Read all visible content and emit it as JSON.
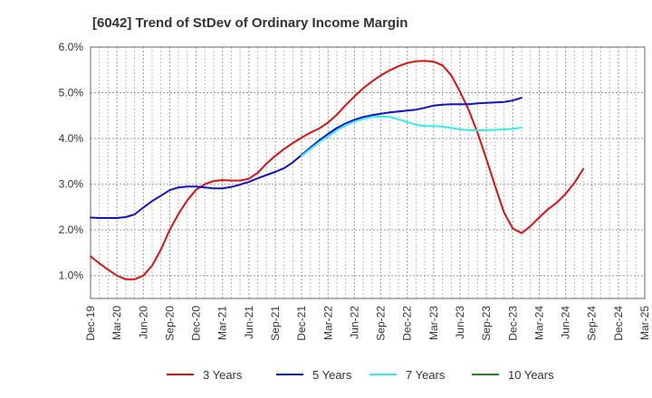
{
  "chart_data": {
    "type": "line",
    "title": "[6042]  Trend of StDev of Ordinary Income Margin",
    "xlabel": "",
    "ylabel": "",
    "ylim": [
      0.5,
      6.0
    ],
    "y_ticks": [
      "1.0%",
      "2.0%",
      "3.0%",
      "4.0%",
      "5.0%",
      "6.0%"
    ],
    "x_ticks": [
      "Dec-19",
      "Mar-20",
      "Jun-20",
      "Sep-20",
      "Dec-20",
      "Mar-21",
      "Jun-21",
      "Sep-21",
      "Dec-21",
      "Mar-22",
      "Jun-22",
      "Sep-22",
      "Dec-22",
      "Mar-23",
      "Jun-23",
      "Sep-23",
      "Dec-23",
      "Mar-24",
      "Jun-24",
      "Sep-24",
      "Dec-24",
      "Mar-25"
    ],
    "grid": true,
    "legend_position": "bottom",
    "series": [
      {
        "name": "3 Years",
        "color": "#dd1111",
        "points": [
          [
            "Dec-19",
            1.42
          ],
          [
            "Jan-20",
            1.27
          ],
          [
            "Feb-20",
            1.13
          ],
          [
            "Mar-20",
            1.0
          ],
          [
            "Apr-20",
            0.92
          ],
          [
            "May-20",
            0.92
          ],
          [
            "Jun-20",
            1.0
          ],
          [
            "Jul-20",
            1.22
          ],
          [
            "Aug-20",
            1.57
          ],
          [
            "Sep-20",
            2.0
          ],
          [
            "Oct-20",
            2.35
          ],
          [
            "Nov-20",
            2.65
          ],
          [
            "Dec-20",
            2.88
          ],
          [
            "Jan-21",
            3.0
          ],
          [
            "Feb-21",
            3.07
          ],
          [
            "Mar-21",
            3.09
          ],
          [
            "Apr-21",
            3.08
          ],
          [
            "May-21",
            3.08
          ],
          [
            "Jun-21",
            3.12
          ],
          [
            "Jul-21",
            3.25
          ],
          [
            "Aug-21",
            3.45
          ],
          [
            "Sep-21",
            3.62
          ],
          [
            "Oct-21",
            3.77
          ],
          [
            "Nov-21",
            3.9
          ],
          [
            "Dec-21",
            4.02
          ],
          [
            "Jan-22",
            4.13
          ],
          [
            "Feb-22",
            4.22
          ],
          [
            "Mar-22",
            4.35
          ],
          [
            "Apr-22",
            4.52
          ],
          [
            "May-22",
            4.73
          ],
          [
            "Jun-22",
            4.92
          ],
          [
            "Jul-22",
            5.1
          ],
          [
            "Aug-22",
            5.25
          ],
          [
            "Sep-22",
            5.38
          ],
          [
            "Oct-22",
            5.49
          ],
          [
            "Nov-22",
            5.58
          ],
          [
            "Dec-22",
            5.65
          ],
          [
            "Jan-23",
            5.69
          ],
          [
            "Feb-23",
            5.7
          ],
          [
            "Mar-23",
            5.68
          ],
          [
            "Apr-23",
            5.6
          ],
          [
            "May-23",
            5.38
          ],
          [
            "Jun-23",
            5.02
          ],
          [
            "Jul-23",
            4.62
          ],
          [
            "Aug-23",
            4.12
          ],
          [
            "Sep-23",
            3.55
          ],
          [
            "Oct-23",
            2.95
          ],
          [
            "Nov-23",
            2.38
          ],
          [
            "Dec-23",
            2.03
          ],
          [
            "Jan-24",
            1.93
          ],
          [
            "Feb-24",
            2.08
          ],
          [
            "Mar-24",
            2.27
          ],
          [
            "Apr-24",
            2.45
          ],
          [
            "May-24",
            2.6
          ],
          [
            "Jun-24",
            2.79
          ],
          [
            "Jul-24",
            3.03
          ],
          [
            "Aug-24",
            3.33
          ]
        ]
      },
      {
        "name": "5 Years",
        "color": "#1111cc",
        "points": [
          [
            "Dec-19",
            2.27
          ],
          [
            "Jan-20",
            2.26
          ],
          [
            "Feb-20",
            2.26
          ],
          [
            "Mar-20",
            2.26
          ],
          [
            "Apr-20",
            2.28
          ],
          [
            "May-20",
            2.34
          ],
          [
            "Jun-20",
            2.49
          ],
          [
            "Jul-20",
            2.63
          ],
          [
            "Aug-20",
            2.75
          ],
          [
            "Sep-20",
            2.87
          ],
          [
            "Oct-20",
            2.93
          ],
          [
            "Nov-20",
            2.95
          ],
          [
            "Dec-20",
            2.95
          ],
          [
            "Jan-21",
            2.93
          ],
          [
            "Feb-21",
            2.91
          ],
          [
            "Mar-21",
            2.91
          ],
          [
            "Apr-21",
            2.94
          ],
          [
            "May-21",
            2.99
          ],
          [
            "Jun-21",
            3.05
          ],
          [
            "Jul-21",
            3.13
          ],
          [
            "Aug-21",
            3.2
          ],
          [
            "Sep-21",
            3.27
          ],
          [
            "Oct-21",
            3.35
          ],
          [
            "Nov-21",
            3.48
          ],
          [
            "Dec-21",
            3.64
          ],
          [
            "Jan-22",
            3.8
          ],
          [
            "Feb-22",
            3.96
          ],
          [
            "Mar-22",
            4.1
          ],
          [
            "Apr-22",
            4.23
          ],
          [
            "May-22",
            4.33
          ],
          [
            "Jun-22",
            4.41
          ],
          [
            "Jul-22",
            4.47
          ],
          [
            "Aug-22",
            4.51
          ],
          [
            "Sep-22",
            4.54
          ],
          [
            "Oct-22",
            4.57
          ],
          [
            "Nov-22",
            4.59
          ],
          [
            "Dec-22",
            4.61
          ],
          [
            "Jan-23",
            4.63
          ],
          [
            "Feb-23",
            4.67
          ],
          [
            "Mar-23",
            4.72
          ],
          [
            "Apr-23",
            4.74
          ],
          [
            "May-23",
            4.75
          ],
          [
            "Jun-23",
            4.75
          ],
          [
            "Jul-23",
            4.75
          ],
          [
            "Aug-23",
            4.77
          ],
          [
            "Sep-23",
            4.78
          ],
          [
            "Oct-23",
            4.79
          ],
          [
            "Nov-23",
            4.8
          ],
          [
            "Dec-23",
            4.83
          ],
          [
            "Jan-24",
            4.89
          ]
        ]
      },
      {
        "name": "7 Years",
        "color": "#33eeee",
        "points": [
          [
            "Dec-21",
            3.62
          ],
          [
            "Jan-22",
            3.77
          ],
          [
            "Feb-22",
            3.92
          ],
          [
            "Mar-22",
            4.05
          ],
          [
            "Apr-22",
            4.18
          ],
          [
            "May-22",
            4.29
          ],
          [
            "Jun-22",
            4.37
          ],
          [
            "Jul-22",
            4.43
          ],
          [
            "Aug-22",
            4.47
          ],
          [
            "Sep-22",
            4.48
          ],
          [
            "Oct-22",
            4.47
          ],
          [
            "Nov-22",
            4.42
          ],
          [
            "Dec-22",
            4.36
          ],
          [
            "Jan-23",
            4.3
          ],
          [
            "Feb-23",
            4.27
          ],
          [
            "Mar-23",
            4.27
          ],
          [
            "Apr-23",
            4.26
          ],
          [
            "May-23",
            4.23
          ],
          [
            "Jun-23",
            4.2
          ],
          [
            "Jul-23",
            4.18
          ],
          [
            "Aug-23",
            4.18
          ],
          [
            "Sep-23",
            4.18
          ],
          [
            "Oct-23",
            4.19
          ],
          [
            "Nov-23",
            4.2
          ],
          [
            "Dec-23",
            4.21
          ],
          [
            "Jan-24",
            4.24
          ]
        ]
      },
      {
        "name": "10 Years",
        "color": "#228822",
        "points": []
      }
    ]
  }
}
